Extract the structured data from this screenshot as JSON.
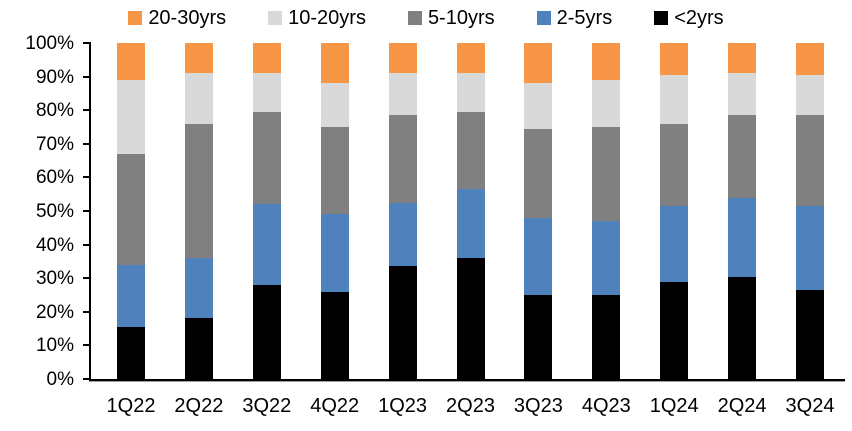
{
  "chart_data": {
    "type": "bar",
    "stacked": true,
    "percent_stacked": true,
    "title": "",
    "xlabel": "",
    "ylabel": "",
    "grid": false,
    "categories": [
      "1Q22",
      "2Q22",
      "3Q22",
      "4Q22",
      "1Q23",
      "2Q23",
      "3Q23",
      "4Q23",
      "1Q24",
      "2Q24",
      "3Q24"
    ],
    "series": [
      {
        "name": "<2yrs",
        "color": "#000000",
        "values": [
          15.5,
          18.0,
          28.0,
          26.0,
          33.5,
          36.0,
          25.0,
          25.0,
          29.0,
          30.5,
          26.5
        ]
      },
      {
        "name": "2-5yrs",
        "color": "#4F81BD",
        "values": [
          18.5,
          18.0,
          24.0,
          23.0,
          19.0,
          20.5,
          23.0,
          22.0,
          22.5,
          23.5,
          25.0
        ]
      },
      {
        "name": "5-10yrs",
        "color": "#808080",
        "values": [
          33.0,
          40.0,
          27.5,
          26.0,
          26.0,
          23.0,
          26.5,
          28.0,
          24.5,
          24.5,
          27.0
        ]
      },
      {
        "name": "10-20yrs",
        "color": "#D9D9D9",
        "values": [
          22.0,
          15.0,
          11.5,
          13.0,
          12.5,
          11.5,
          13.5,
          14.0,
          14.5,
          12.5,
          12.0
        ]
      },
      {
        "name": "20-30yrs",
        "color": "#F79646",
        "values": [
          11.0,
          9.0,
          9.0,
          12.0,
          9.0,
          9.0,
          12.0,
          11.0,
          9.5,
          9.0,
          9.5
        ]
      }
    ],
    "legend": {
      "position": "top",
      "order": [
        "20-30yrs",
        "10-20yrs",
        "5-10yrs",
        "2-5yrs",
        "<2yrs"
      ]
    },
    "y_axis": {
      "min": 0,
      "max": 100,
      "tick_step": 10,
      "tick_suffix": "%",
      "tick_labels": [
        "0%",
        "10%",
        "20%",
        "30%",
        "40%",
        "50%",
        "60%",
        "70%",
        "80%",
        "90%",
        "100%"
      ]
    }
  }
}
